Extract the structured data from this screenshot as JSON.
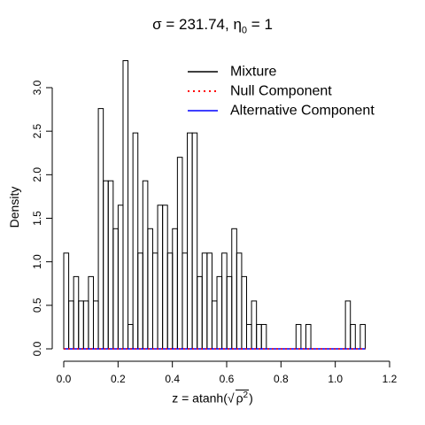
{
  "chart_data": {
    "type": "histogram",
    "title": {
      "sigma_symbol": "σ",
      "sigma_value": "231.74",
      "eta_symbol": "η",
      "eta_subscript": "0",
      "eta_value": "1",
      "equals": "=",
      "separator": ","
    },
    "xlabel": {
      "prefix": "z",
      "equals": "=",
      "func": "atanh",
      "open": "(",
      "sqrt_symbol": "√",
      "rho": "ρ",
      "exponent": "2",
      "close": ")"
    },
    "ylabel": "Density",
    "xlim": [
      0.0,
      1.2
    ],
    "ylim": [
      0.0,
      3.3
    ],
    "x_ticks": [
      "0.0",
      "0.2",
      "0.4",
      "0.6",
      "0.8",
      "1.0",
      "1.2"
    ],
    "y_ticks": [
      "0.0",
      "0.5",
      "1.0",
      "1.5",
      "2.0",
      "2.5",
      "3.0"
    ],
    "bin_start": 0.0,
    "bin_width": 0.0182,
    "values": [
      1.1,
      0.55,
      0.83,
      0.55,
      0.55,
      0.83,
      0.55,
      2.76,
      1.93,
      1.93,
      1.38,
      1.65,
      3.31,
      0.28,
      2.48,
      1.1,
      1.93,
      1.38,
      1.1,
      1.65,
      1.65,
      1.1,
      1.38,
      2.2,
      1.1,
      2.48,
      2.48,
      0.83,
      1.1,
      1.1,
      0.55,
      0.83,
      1.1,
      0.83,
      1.38,
      1.1,
      0.83,
      0.28,
      0.55,
      0.28,
      0.28,
      0.0,
      0.0,
      0.0,
      0.0,
      0.0,
      0.0,
      0.28,
      0.0,
      0.28,
      0.0,
      0.0,
      0.0,
      0.0,
      0.0,
      0.0,
      0.0,
      0.55,
      0.28,
      0.0,
      0.28
    ],
    "null_component_y": 0.0,
    "alternative_component_y": 0.0,
    "legend": {
      "position": "top-right",
      "items": [
        {
          "label": "Mixture",
          "color": "#000000",
          "style": "solid"
        },
        {
          "label": "Null Component",
          "color": "#ff0000",
          "style": "dotted"
        },
        {
          "label": "Alternative Component",
          "color": "#0000ff",
          "style": "solid"
        }
      ]
    },
    "grid": false
  }
}
